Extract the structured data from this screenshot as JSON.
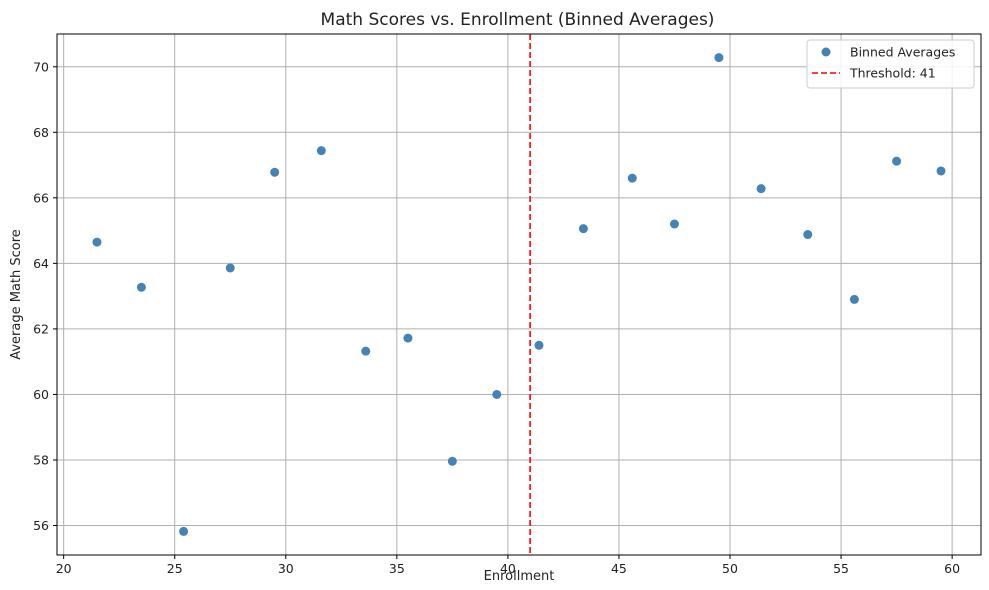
{
  "chart_data": {
    "type": "scatter",
    "title": "Math Scores vs. Enrollment (Binned Averages)",
    "xlabel": "Enrollment",
    "ylabel": "Average Math Score",
    "xlim": [
      19.7,
      61.3
    ],
    "ylim": [
      55.1,
      71.0
    ],
    "xticks": [
      20,
      25,
      30,
      35,
      40,
      45,
      50,
      55,
      60
    ],
    "yticks": [
      56,
      58,
      60,
      62,
      64,
      66,
      68,
      70
    ],
    "grid": true,
    "legend_position": "top-right",
    "series": [
      {
        "name": "Binned Averages",
        "color": "#4682b4",
        "points": [
          {
            "x": 21.5,
            "y": 64.65
          },
          {
            "x": 23.5,
            "y": 63.27
          },
          {
            "x": 25.4,
            "y": 55.82
          },
          {
            "x": 27.5,
            "y": 63.86
          },
          {
            "x": 29.5,
            "y": 66.78
          },
          {
            "x": 31.6,
            "y": 67.44
          },
          {
            "x": 33.6,
            "y": 61.32
          },
          {
            "x": 35.5,
            "y": 61.72
          },
          {
            "x": 37.5,
            "y": 57.96
          },
          {
            "x": 39.5,
            "y": 60.0
          },
          {
            "x": 41.4,
            "y": 61.5
          },
          {
            "x": 43.4,
            "y": 65.06
          },
          {
            "x": 45.6,
            "y": 66.6
          },
          {
            "x": 47.5,
            "y": 65.2
          },
          {
            "x": 49.5,
            "y": 70.28
          },
          {
            "x": 51.4,
            "y": 66.28
          },
          {
            "x": 53.5,
            "y": 64.88
          },
          {
            "x": 55.6,
            "y": 62.9
          },
          {
            "x": 57.5,
            "y": 67.12
          },
          {
            "x": 59.5,
            "y": 66.82
          }
        ]
      }
    ],
    "threshold": {
      "name": "Threshold: 41",
      "x": 41,
      "color": "#ff0000",
      "style": "dashed"
    }
  }
}
